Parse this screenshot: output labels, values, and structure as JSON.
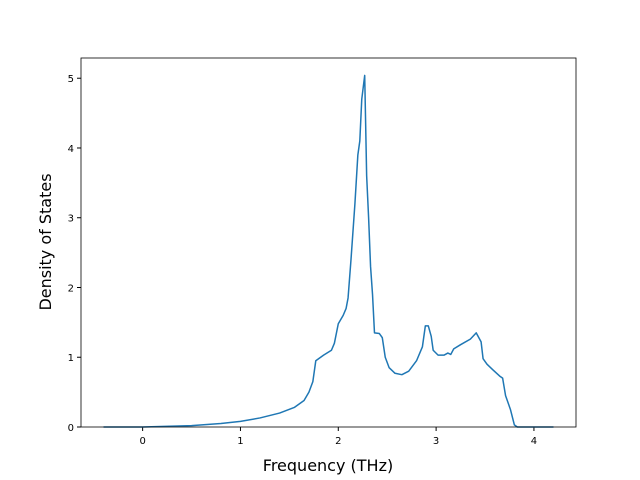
{
  "chart_data": {
    "type": "line",
    "xlabel": "Frequency (THz)",
    "ylabel": "Density of States",
    "x": [
      -0.4,
      0,
      0.5,
      0.8,
      1.0,
      1.2,
      1.4,
      1.55,
      1.65,
      1.7,
      1.74,
      1.77,
      1.85,
      1.93,
      1.96,
      2.0,
      2.05,
      2.08,
      2.1,
      2.13,
      2.17,
      2.2,
      2.22,
      2.24,
      2.27,
      2.29,
      2.31,
      2.33,
      2.35,
      2.37,
      2.42,
      2.45,
      2.48,
      2.52,
      2.58,
      2.65,
      2.72,
      2.8,
      2.86,
      2.89,
      2.92,
      2.95,
      2.97,
      3.02,
      3.08,
      3.12,
      3.15,
      3.18,
      3.25,
      3.35,
      3.41,
      3.46,
      3.48,
      3.52,
      3.58,
      3.65,
      3.68,
      3.71,
      3.76,
      3.8,
      3.83,
      4.2
    ],
    "series": [
      {
        "color": "#1f77b4",
        "values": [
          0,
          0,
          0.02,
          0.05,
          0.08,
          0.13,
          0.2,
          0.28,
          0.38,
          0.5,
          0.65,
          0.95,
          1.03,
          1.1,
          1.2,
          1.48,
          1.6,
          1.7,
          1.85,
          2.4,
          3.2,
          3.9,
          4.1,
          4.7,
          5.04,
          3.6,
          3.0,
          2.3,
          1.9,
          1.35,
          1.34,
          1.28,
          1.0,
          0.85,
          0.77,
          0.75,
          0.8,
          0.95,
          1.15,
          1.45,
          1.45,
          1.3,
          1.1,
          1.03,
          1.03,
          1.06,
          1.04,
          1.12,
          1.18,
          1.26,
          1.35,
          1.22,
          0.98,
          0.9,
          0.82,
          0.73,
          0.7,
          0.45,
          0.25,
          0.03,
          0,
          0
        ]
      }
    ],
    "xlim": [
      -0.63,
      4.43
    ],
    "ylim": [
      0,
      5.29
    ],
    "xticks": [
      0,
      1,
      2,
      3,
      4
    ],
    "yticks": [
      0,
      1,
      2,
      3,
      4,
      5
    ]
  }
}
